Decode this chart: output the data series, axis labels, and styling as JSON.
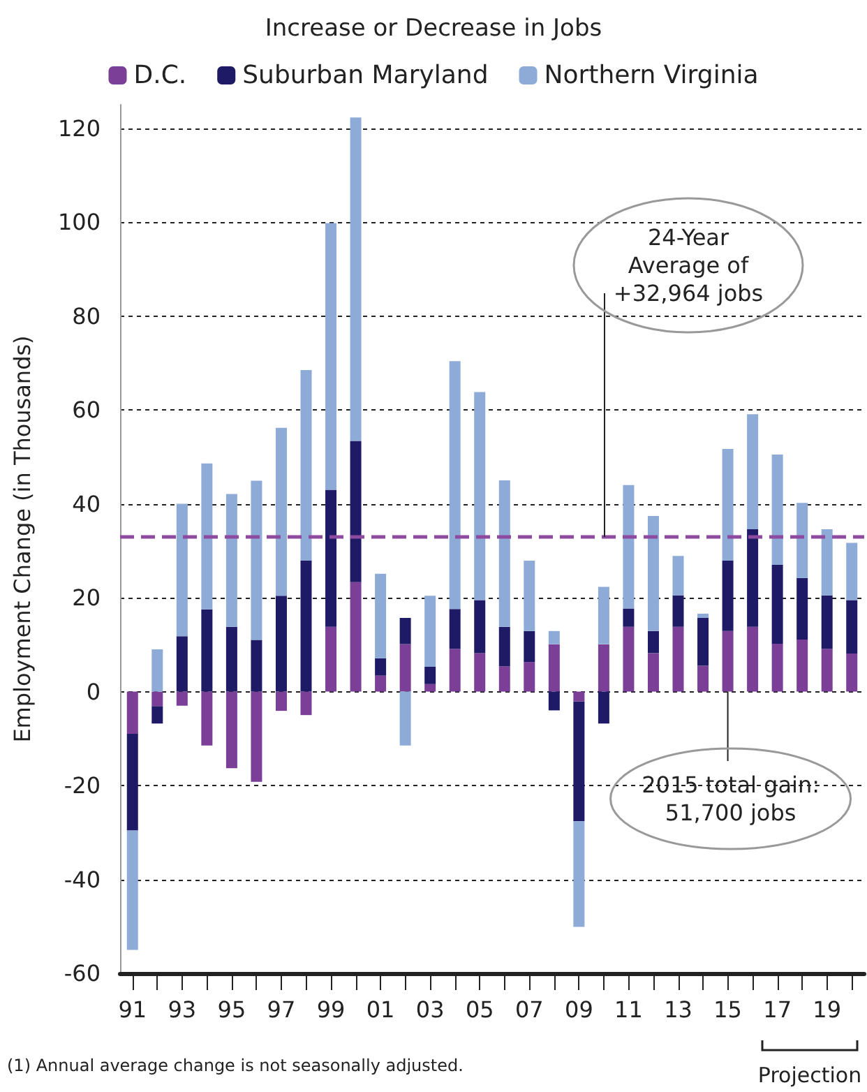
{
  "chart_data": {
    "type": "bar",
    "stacked": true,
    "legend_title": "Increase or Decrease in Jobs",
    "ylabel": "Employment Change (in Thousands)",
    "categories": [
      "91",
      null,
      "93",
      null,
      "95",
      null,
      "97",
      null,
      "99",
      null,
      "01",
      null,
      "03",
      null,
      "05",
      null,
      "07",
      null,
      "09",
      null,
      "11",
      null,
      "13",
      null,
      "15",
      null,
      "17",
      null,
      "19",
      null
    ],
    "series": [
      {
        "name": "D.C.",
        "color": "#7b3f98",
        "values": [
          -9,
          -3.1,
          -3,
          -11.5,
          -16.3,
          -19.2,
          -4.1,
          -5,
          13.8,
          23.3,
          3.4,
          10.1,
          1.6,
          9.1,
          8.2,
          5.4,
          6.3,
          10.1,
          -2.1,
          10.1,
          13.8,
          8.2,
          13.8,
          5.5,
          12.9,
          13.8,
          10.2,
          11.1,
          9.1,
          8.1
        ]
      },
      {
        "name": "Suburban Maryland",
        "color": "#1e1a66",
        "values": [
          -20.6,
          -3.7,
          11.8,
          17.5,
          13.8,
          11,
          20.4,
          27.9,
          29.2,
          30.1,
          3.7,
          5.6,
          3.7,
          8.5,
          11.3,
          8.4,
          6.6,
          -4,
          -25.5,
          -6.8,
          3.9,
          4.7,
          6.7,
          10.2,
          15,
          20.8,
          16.8,
          13.1,
          11.4,
          11.4
        ]
      },
      {
        "name": "Northern Virginia",
        "color": "#8eabd8",
        "values": [
          -25.4,
          9,
          28.2,
          31.1,
          28.3,
          33.9,
          35.8,
          40.6,
          56.8,
          68.9,
          18,
          -11.5,
          15.1,
          52.8,
          44.3,
          31.2,
          15,
          2.8,
          -22.5,
          12.2,
          26.3,
          24.5,
          8.4,
          0.9,
          23.8,
          24.5,
          23.5,
          16,
          14.1,
          12.2
        ]
      }
    ],
    "ylim": [
      -60,
      125
    ],
    "yticks": [
      -60,
      -40,
      -20,
      0,
      20,
      40,
      60,
      80,
      100,
      120
    ],
    "grid": "y",
    "legend": "top",
    "ref_lines": [
      {
        "axis": "y",
        "value": 32.964,
        "label": "24-Year\nAverage of\n+32,964 jobs",
        "color": "#8e4a9e",
        "line_style": "dashed"
      }
    ],
    "annotations": [
      {
        "text": "2015 total gain:\n51,700 jobs",
        "x": "15",
        "y": 0
      },
      "Projection",
      "(1) Annual average change is not seasonally adjusted."
    ]
  }
}
